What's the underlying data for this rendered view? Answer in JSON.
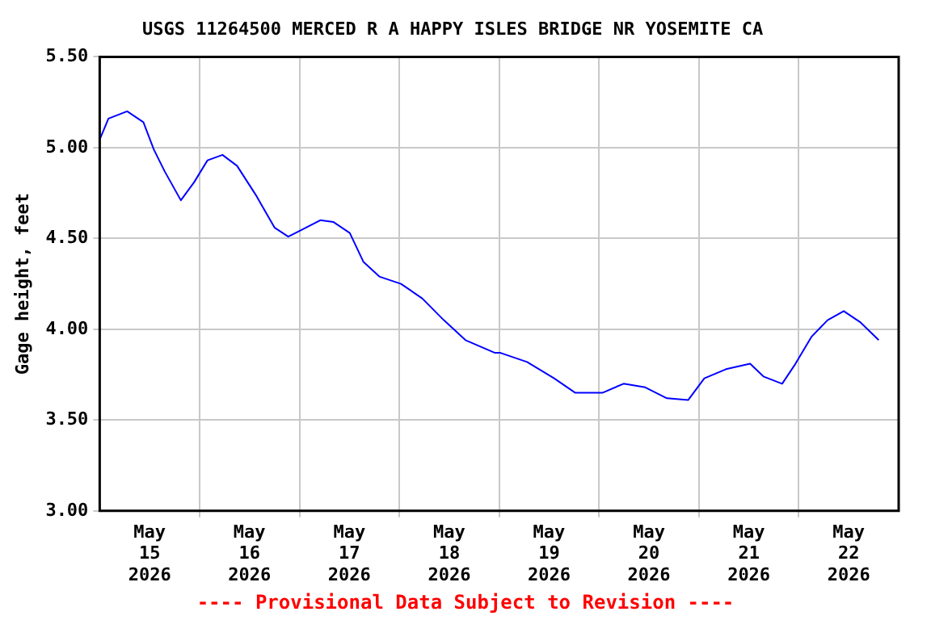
{
  "chart_data": {
    "type": "line",
    "title": "USGS 11264500 MERCED R A HAPPY ISLES BRIDGE NR YOSEMITE CA",
    "ylabel": "Gage height, feet",
    "annotations": [
      "---- Provisional Data Subject to Revision ----"
    ],
    "x": [
      "2026-05-15T00:06",
      "2026-05-15T02:06",
      "2026-05-15T06:36",
      "2026-05-15T10:30",
      "2026-05-15T13:00",
      "2026-05-15T15:36",
      "2026-05-15T19:30",
      "2026-05-15T22:42",
      "2026-05-16T01:54",
      "2026-05-16T05:30",
      "2026-05-16T09:00",
      "2026-05-16T13:30",
      "2026-05-16T18:00",
      "2026-05-16T21:18",
      "2026-05-16T23:54",
      "2026-05-17T05:00",
      "2026-05-17T08:12",
      "2026-05-17T12:06",
      "2026-05-17T15:24",
      "2026-05-17T19:12",
      "2026-05-18T00:24",
      "2026-05-18T05:30",
      "2026-05-18T10:42",
      "2026-05-18T15:54",
      "2026-05-18T23:00",
      "2026-05-19T00:18",
      "2026-05-19T06:42",
      "2026-05-19T13:12",
      "2026-05-19T18:18",
      "2026-05-20T00:48",
      "2026-05-20T05:54",
      "2026-05-20T11:06",
      "2026-05-20T16:18",
      "2026-05-20T21:24",
      "2026-05-21T01:18",
      "2026-05-21T06:30",
      "2026-05-21T12:18",
      "2026-05-21T15:30",
      "2026-05-21T20:00",
      "2026-05-21T23:12",
      "2026-05-22T03:06",
      "2026-05-22T06:54",
      "2026-05-22T10:48",
      "2026-05-22T14:42",
      "2026-05-22T19:12"
    ],
    "series": [
      {
        "color": "#0000ff",
        "values": [
          5.05,
          5.16,
          5.2,
          5.14,
          4.99,
          4.87,
          4.71,
          4.81,
          4.93,
          4.96,
          4.9,
          4.74,
          4.56,
          4.51,
          4.54,
          4.6,
          4.59,
          4.53,
          4.37,
          4.29,
          4.25,
          4.17,
          4.05,
          3.94,
          3.87,
          3.87,
          3.82,
          3.73,
          3.65,
          3.65,
          3.7,
          3.68,
          3.62,
          3.61,
          3.73,
          3.78,
          3.81,
          3.74,
          3.7,
          3.81,
          3.96,
          4.05,
          4.1,
          4.04,
          3.94
        ]
      }
    ],
    "xlim": [
      "2026-05-15T00:00",
      "2026-05-23T00:00"
    ],
    "xticks": [
      {
        "value": "2026-05-15T12:00",
        "label": "May 15 2026"
      },
      {
        "value": "2026-05-16T00:00",
        "label": null
      },
      {
        "value": "2026-05-16T12:00",
        "label": "May 16 2026"
      },
      {
        "value": "2026-05-17T00:00",
        "label": null
      },
      {
        "value": "2026-05-17T12:00",
        "label": "May 17 2026"
      },
      {
        "value": "2026-05-18T00:00",
        "label": null
      },
      {
        "value": "2026-05-18T12:00",
        "label": "May 18 2026"
      },
      {
        "value": "2026-05-19T00:00",
        "label": null
      },
      {
        "value": "2026-05-19T12:00",
        "label": "May 19 2026"
      },
      {
        "value": "2026-05-20T00:00",
        "label": null
      },
      {
        "value": "2026-05-20T12:00",
        "label": "May 20 2026"
      },
      {
        "value": "2026-05-21T00:00",
        "label": null
      },
      {
        "value": "2026-05-21T12:00",
        "label": "May 21 2026"
      },
      {
        "value": "2026-05-22T00:00",
        "label": null
      },
      {
        "value": "2026-05-22T12:00",
        "label": "May 22 2026"
      }
    ],
    "ylim": [
      3.0,
      5.5
    ],
    "yticks": [
      {
        "value": 3.0,
        "label": "3.00"
      },
      {
        "value": 3.5,
        "label": "3.50"
      },
      {
        "value": 4.0,
        "label": "4.00"
      },
      {
        "value": 4.5,
        "label": "4.50"
      },
      {
        "value": 5.0,
        "label": "5.00"
      },
      {
        "value": 5.5,
        "label": "5.50"
      }
    ],
    "grid": true,
    "legend": false,
    "marker": "none",
    "line_style": "solid"
  }
}
